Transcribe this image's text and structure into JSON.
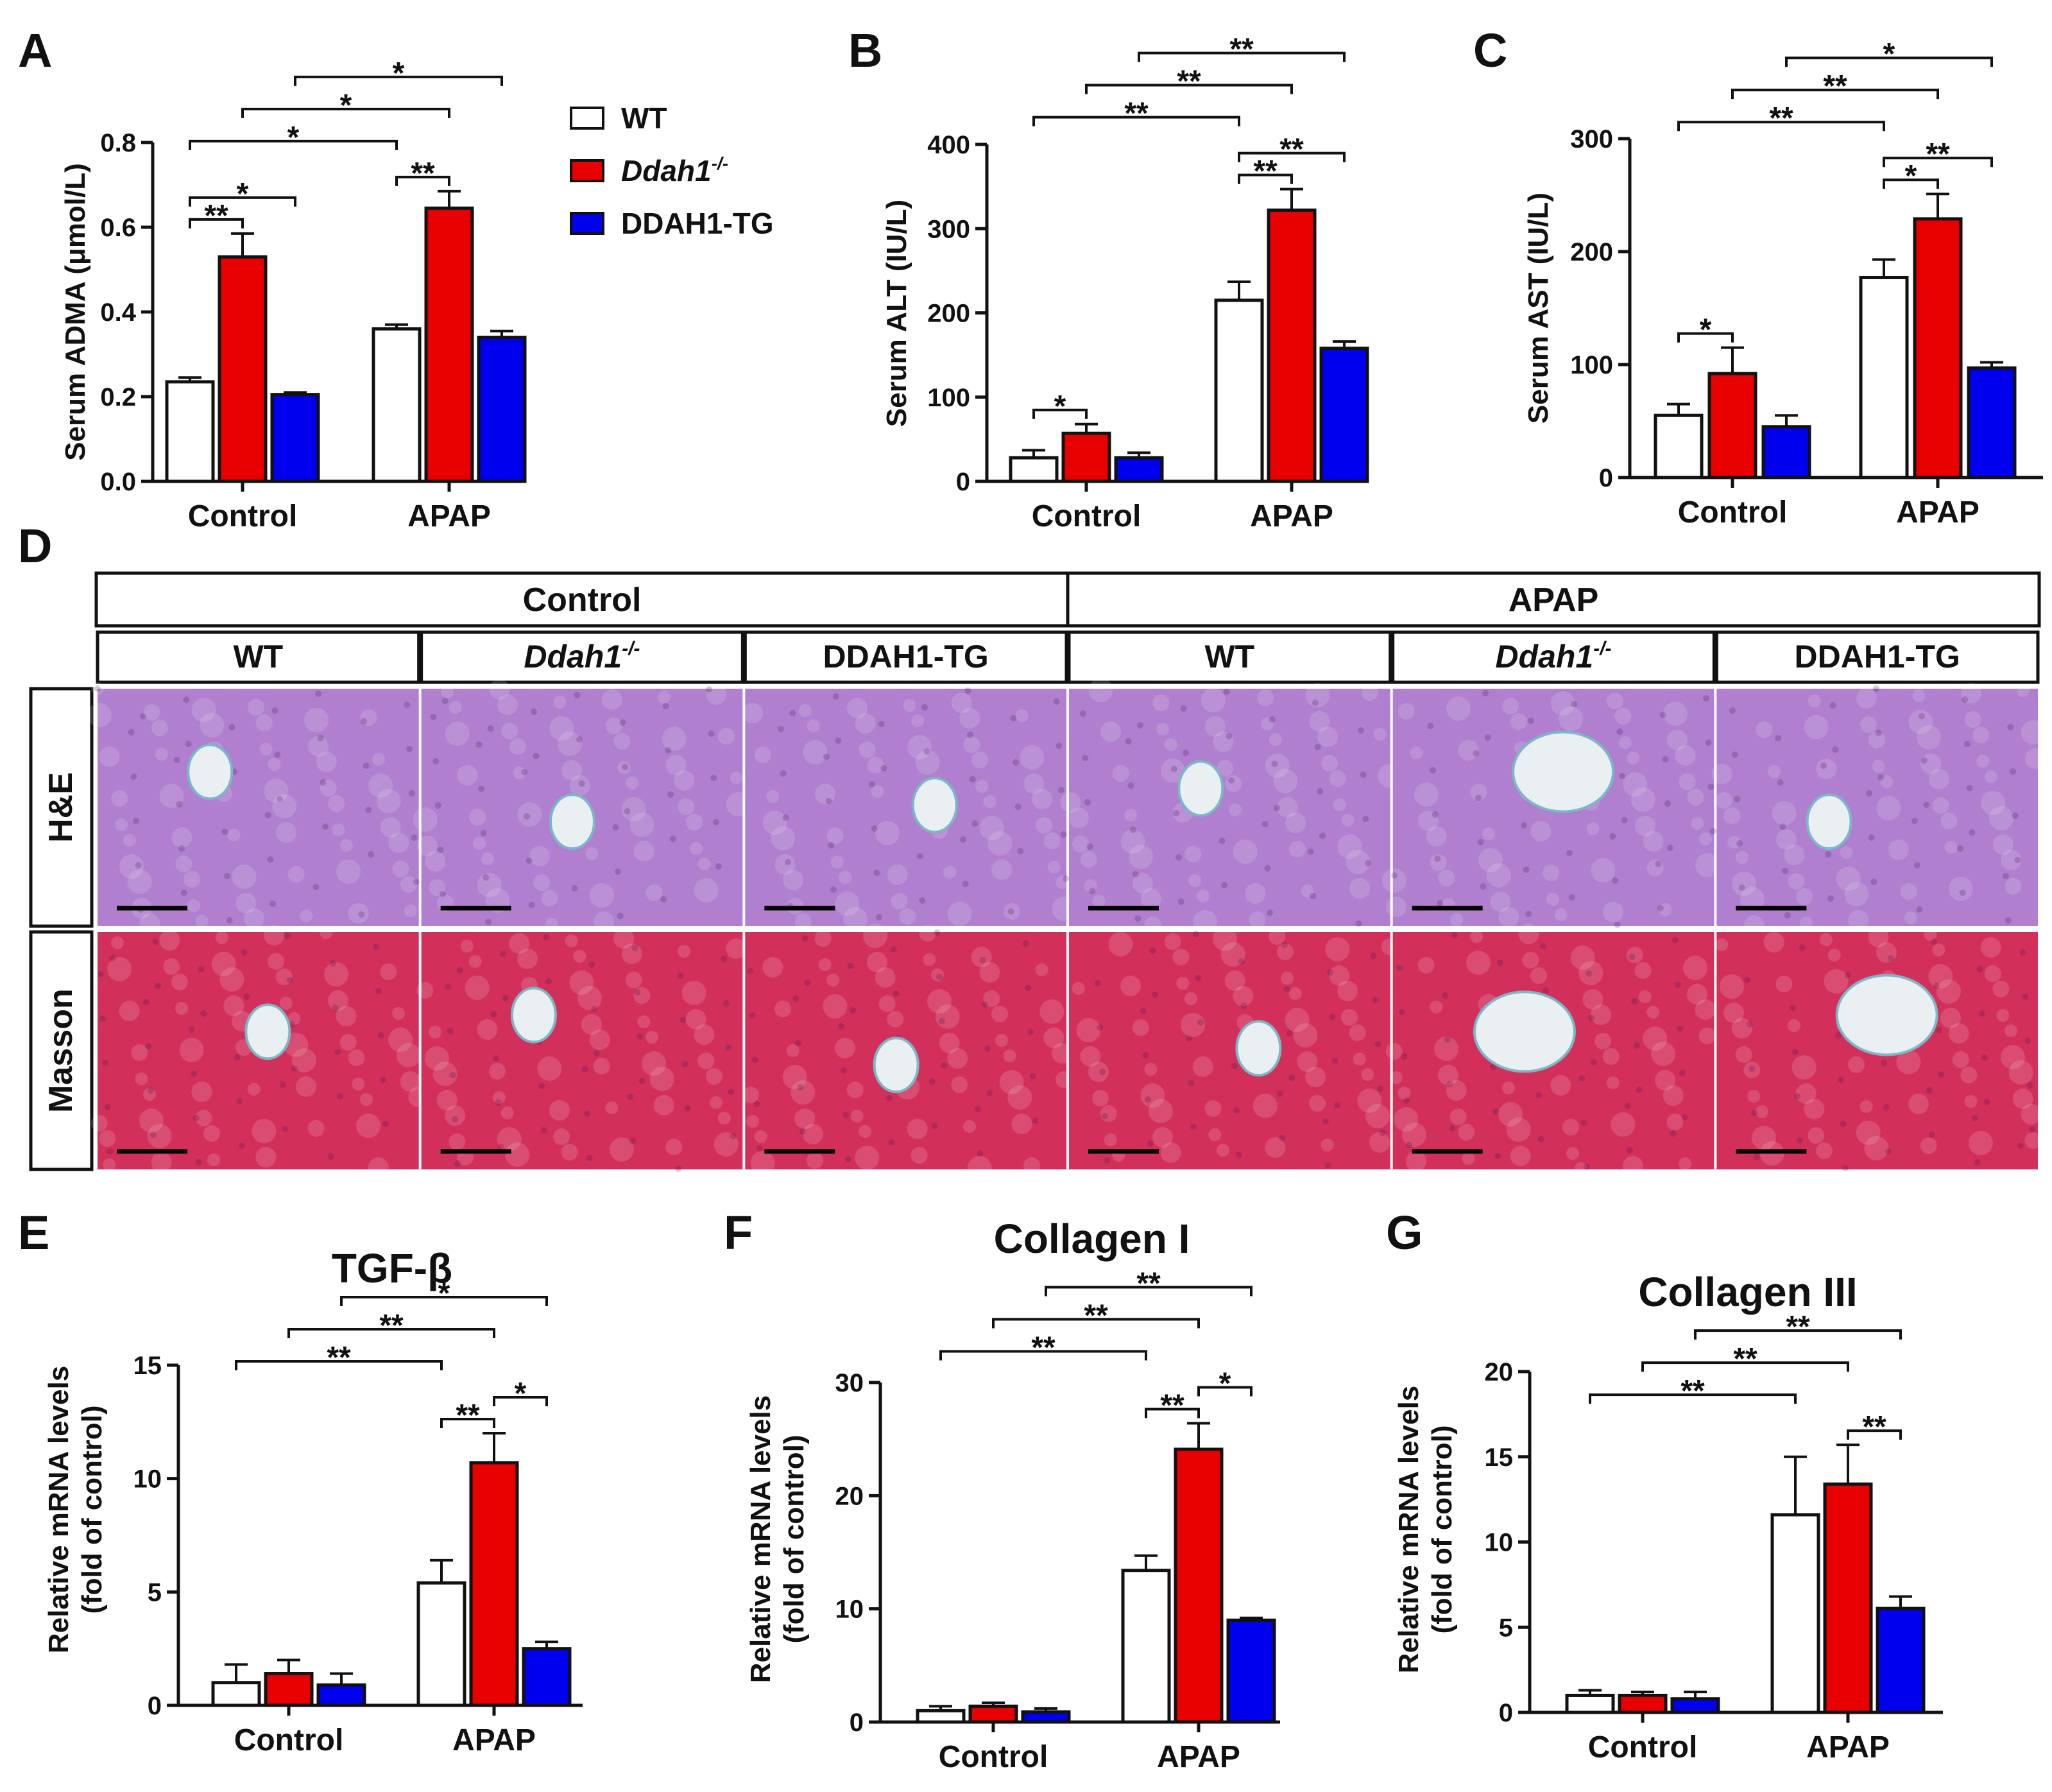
{
  "figure": {
    "panel_letters": [
      "A",
      "B",
      "C",
      "D",
      "E",
      "F",
      "G"
    ],
    "colors": {
      "WT": "#ffffff",
      "Ddah1-/-": "#e80000",
      "DDAH1-TG": "#0000ee",
      "outline": "#111111"
    }
  },
  "legend": {
    "items": [
      {
        "label": "WT",
        "color": "#ffffff",
        "italic": false,
        "superscript": ""
      },
      {
        "label": "Ddah1",
        "color": "#e80000",
        "italic": true,
        "superscript": "-/-"
      },
      {
        "label": "DDAH1-TG",
        "color": "#0000ee",
        "italic": false,
        "superscript": ""
      }
    ]
  },
  "chart_data": [
    {
      "panel": "A",
      "type": "bar",
      "title": "",
      "ylabel": "Serum ADMA (μmol/L)",
      "ylim": [
        0,
        0.8
      ],
      "yticks": [
        0.0,
        0.2,
        0.4,
        0.6,
        0.8
      ],
      "ytick_decimals": 1,
      "categories": [
        "Control",
        "APAP"
      ],
      "series": [
        {
          "name": "WT",
          "values": [
            0.235,
            0.36
          ],
          "errors": [
            0.01,
            0.01
          ]
        },
        {
          "name": "Ddah1-/-",
          "values": [
            0.53,
            0.645
          ],
          "errors": [
            0.055,
            0.04
          ]
        },
        {
          "name": "DDAH1-TG",
          "values": [
            0.205,
            0.34
          ],
          "errors": [
            0.005,
            0.015
          ]
        }
      ],
      "annotations": [
        {
          "from": [
            0,
            0
          ],
          "to": [
            0,
            1
          ],
          "label": "**"
        },
        {
          "from": [
            0,
            0
          ],
          "to": [
            0,
            2
          ],
          "label": "*"
        },
        {
          "from": [
            1,
            0
          ],
          "to": [
            1,
            1
          ],
          "label": "**"
        },
        {
          "from": [
            0,
            0
          ],
          "to": [
            1,
            0
          ],
          "label": "*"
        },
        {
          "from": [
            0,
            1
          ],
          "to": [
            1,
            1
          ],
          "label": "*"
        },
        {
          "from": [
            0,
            2
          ],
          "to": [
            1,
            2
          ],
          "label": "*"
        }
      ]
    },
    {
      "panel": "B",
      "type": "bar",
      "title": "",
      "ylabel": "Serum ALT (IU/L)",
      "ylim": [
        0,
        400
      ],
      "yticks": [
        0,
        100,
        200,
        300,
        400
      ],
      "ytick_decimals": 0,
      "categories": [
        "Control",
        "APAP"
      ],
      "series": [
        {
          "name": "WT",
          "values": [
            28,
            215
          ],
          "errors": [
            9,
            22
          ]
        },
        {
          "name": "Ddah1-/-",
          "values": [
            57,
            322
          ],
          "errors": [
            11,
            25
          ]
        },
        {
          "name": "DDAH1-TG",
          "values": [
            28,
            158
          ],
          "errors": [
            6,
            8
          ]
        }
      ],
      "annotations": [
        {
          "from": [
            0,
            0
          ],
          "to": [
            0,
            1
          ],
          "label": "*"
        },
        {
          "from": [
            1,
            0
          ],
          "to": [
            1,
            1
          ],
          "label": "**"
        },
        {
          "from": [
            1,
            0
          ],
          "to": [
            1,
            2
          ],
          "label": "**"
        },
        {
          "from": [
            0,
            0
          ],
          "to": [
            1,
            0
          ],
          "label": "**"
        },
        {
          "from": [
            0,
            1
          ],
          "to": [
            1,
            1
          ],
          "label": "**"
        },
        {
          "from": [
            0,
            2
          ],
          "to": [
            1,
            2
          ],
          "label": "**"
        }
      ]
    },
    {
      "panel": "C",
      "type": "bar",
      "title": "",
      "ylabel": "Serum AST (IU/L)",
      "ylim": [
        0,
        300
      ],
      "yticks": [
        0,
        100,
        200,
        300
      ],
      "ytick_decimals": 0,
      "categories": [
        "Control",
        "APAP"
      ],
      "series": [
        {
          "name": "WT",
          "values": [
            55,
            177
          ],
          "errors": [
            10,
            16
          ]
        },
        {
          "name": "Ddah1-/-",
          "values": [
            92,
            229
          ],
          "errors": [
            23,
            22
          ]
        },
        {
          "name": "DDAH1-TG",
          "values": [
            45,
            97
          ],
          "errors": [
            10,
            5
          ]
        }
      ],
      "annotations": [
        {
          "from": [
            0,
            0
          ],
          "to": [
            0,
            1
          ],
          "label": "*"
        },
        {
          "from": [
            1,
            0
          ],
          "to": [
            1,
            1
          ],
          "label": "*"
        },
        {
          "from": [
            1,
            0
          ],
          "to": [
            1,
            2
          ],
          "label": "**"
        },
        {
          "from": [
            0,
            0
          ],
          "to": [
            1,
            0
          ],
          "label": "**"
        },
        {
          "from": [
            0,
            1
          ],
          "to": [
            1,
            1
          ],
          "label": "**"
        },
        {
          "from": [
            0,
            2
          ],
          "to": [
            1,
            2
          ],
          "label": "*"
        }
      ]
    },
    {
      "panel": "E",
      "type": "bar",
      "title": "TGF-β",
      "ylabel": "Relative mRNA levels\n(fold of control)",
      "ylim": [
        0,
        15
      ],
      "yticks": [
        0,
        5,
        10,
        15
      ],
      "ytick_decimals": 0,
      "categories": [
        "Control",
        "APAP"
      ],
      "series": [
        {
          "name": "WT",
          "values": [
            1.0,
            5.4
          ],
          "errors": [
            0.8,
            1.0
          ]
        },
        {
          "name": "Ddah1-/-",
          "values": [
            1.4,
            10.7
          ],
          "errors": [
            0.6,
            1.3
          ]
        },
        {
          "name": "DDAH1-TG",
          "values": [
            0.9,
            2.5
          ],
          "errors": [
            0.5,
            0.3
          ]
        }
      ],
      "annotations": [
        {
          "from": [
            1,
            0
          ],
          "to": [
            1,
            1
          ],
          "label": "**"
        },
        {
          "from": [
            1,
            1
          ],
          "to": [
            1,
            2
          ],
          "label": "*"
        },
        {
          "from": [
            0,
            0
          ],
          "to": [
            1,
            0
          ],
          "label": "**"
        },
        {
          "from": [
            0,
            1
          ],
          "to": [
            1,
            1
          ],
          "label": "**"
        },
        {
          "from": [
            0,
            2
          ],
          "to": [
            1,
            2
          ],
          "label": "*"
        }
      ]
    },
    {
      "panel": "F",
      "type": "bar",
      "title": "Collagen I",
      "ylabel": "Relative mRNA levels\n(fold of control)",
      "ylim": [
        0,
        30
      ],
      "yticks": [
        0,
        10,
        20,
        30
      ],
      "ytick_decimals": 0,
      "categories": [
        "Control",
        "APAP"
      ],
      "series": [
        {
          "name": "WT",
          "values": [
            1.0,
            13.4
          ],
          "errors": [
            0.4,
            1.3
          ]
        },
        {
          "name": "Ddah1-/-",
          "values": [
            1.4,
            24.1
          ],
          "errors": [
            0.3,
            2.3
          ]
        },
        {
          "name": "DDAH1-TG",
          "values": [
            0.9,
            9.0
          ],
          "errors": [
            0.3,
            0.2
          ]
        }
      ],
      "annotations": [
        {
          "from": [
            1,
            0
          ],
          "to": [
            1,
            1
          ],
          "label": "**"
        },
        {
          "from": [
            1,
            1
          ],
          "to": [
            1,
            2
          ],
          "label": "*"
        },
        {
          "from": [
            0,
            0
          ],
          "to": [
            1,
            0
          ],
          "label": "**"
        },
        {
          "from": [
            0,
            1
          ],
          "to": [
            1,
            1
          ],
          "label": "**"
        },
        {
          "from": [
            0,
            2
          ],
          "to": [
            1,
            2
          ],
          "label": "**"
        }
      ]
    },
    {
      "panel": "G",
      "type": "bar",
      "title": "Collagen III",
      "ylabel": "Relative mRNA levels\n(fold of control)",
      "ylim": [
        0,
        20
      ],
      "yticks": [
        0,
        5,
        10,
        15,
        20
      ],
      "ytick_decimals": 0,
      "categories": [
        "Control",
        "APAP"
      ],
      "series": [
        {
          "name": "WT",
          "values": [
            1.0,
            11.6
          ],
          "errors": [
            0.3,
            3.4
          ]
        },
        {
          "name": "Ddah1-/-",
          "values": [
            1.0,
            13.4
          ],
          "errors": [
            0.2,
            2.3
          ]
        },
        {
          "name": "DDAH1-TG",
          "values": [
            0.8,
            6.1
          ],
          "errors": [
            0.4,
            0.7
          ]
        }
      ],
      "annotations": [
        {
          "from": [
            1,
            1
          ],
          "to": [
            1,
            2
          ],
          "label": "**"
        },
        {
          "from": [
            0,
            0
          ],
          "to": [
            1,
            0
          ],
          "label": "**"
        },
        {
          "from": [
            0,
            1
          ],
          "to": [
            1,
            1
          ],
          "label": "**"
        },
        {
          "from": [
            0,
            2
          ],
          "to": [
            1,
            2
          ],
          "label": "**"
        }
      ]
    }
  ],
  "histology": {
    "conditions": [
      "Control",
      "APAP"
    ],
    "groups": [
      {
        "label": "WT",
        "italic": false,
        "superscript": ""
      },
      {
        "label": "Ddah1",
        "italic": true,
        "superscript": "-/-"
      },
      {
        "label": "DDAH1-TG",
        "italic": false,
        "superscript": ""
      },
      {
        "label": "WT",
        "italic": false,
        "superscript": ""
      },
      {
        "label": "Ddah1",
        "italic": true,
        "superscript": "-/-"
      },
      {
        "label": "DDAH1-TG",
        "italic": false,
        "superscript": ""
      }
    ],
    "stains": [
      "H&E",
      "Masson"
    ],
    "stain_colors": {
      "H&E": "#b07fcf",
      "Masson": "#d2305a"
    },
    "vessel_color": "#eaf0f2"
  }
}
